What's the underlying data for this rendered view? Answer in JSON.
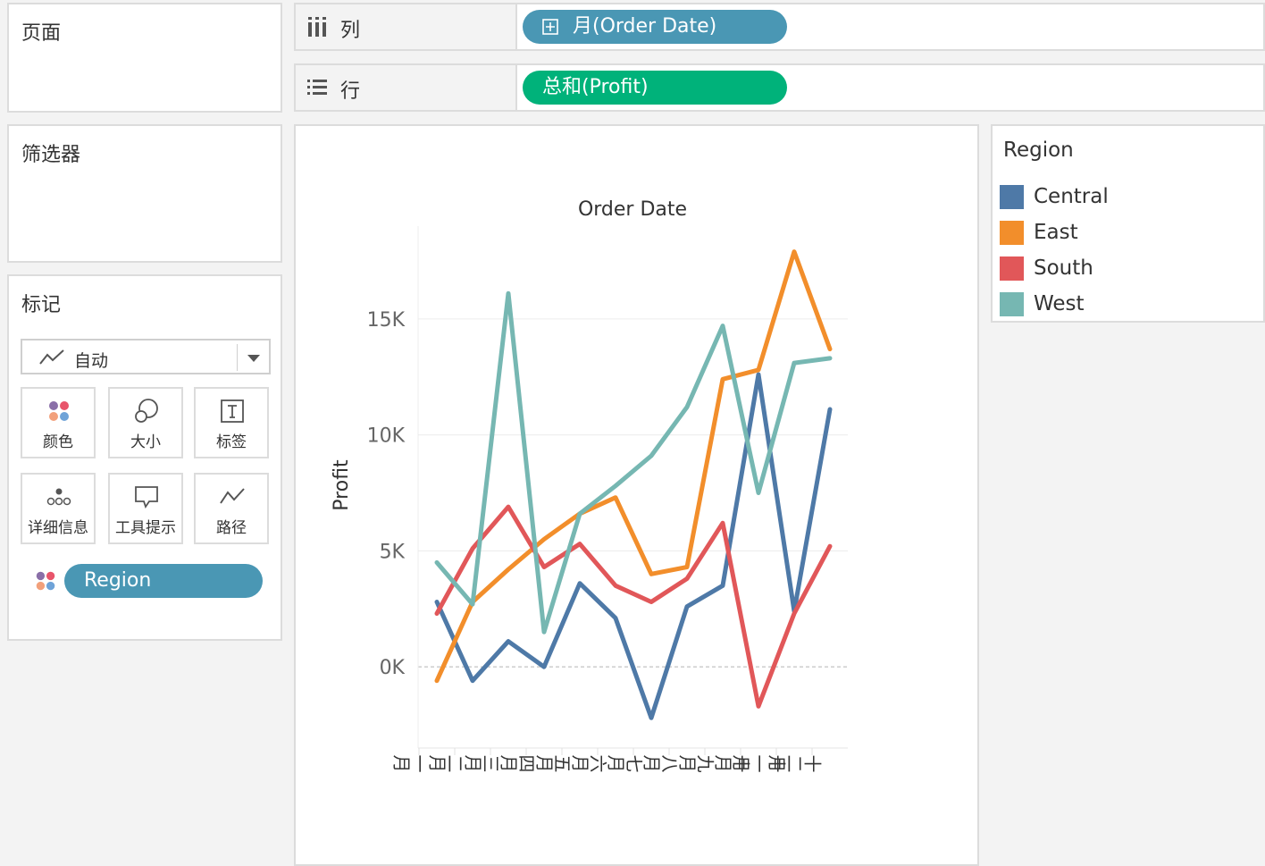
{
  "pages_panel": {
    "title": "页面"
  },
  "filters_panel": {
    "title": "筛选器"
  },
  "marks_panel": {
    "title": "标记",
    "mark_type": "自动",
    "buttons": [
      "颜色",
      "大小",
      "标签",
      "详细信息",
      "工具提示",
      "路径"
    ],
    "color_pill": "Region"
  },
  "columns_shelf": {
    "label": "列",
    "pill": "月(Order Date)"
  },
  "rows_shelf": {
    "label": "行",
    "pill": "总和(Profit)"
  },
  "legend": {
    "title": "Region",
    "items": [
      {
        "name": "Central",
        "color": "#4e79a7"
      },
      {
        "name": "East",
        "color": "#f28e2b"
      },
      {
        "name": "South",
        "color": "#e15759"
      },
      {
        "name": "West",
        "color": "#76b7b2"
      }
    ]
  },
  "chart_data": {
    "type": "line",
    "title": "Order Date",
    "xlabel": "",
    "ylabel": "Profit",
    "categories": [
      "一月",
      "二月",
      "三月",
      "四月",
      "五月",
      "六月",
      "七月",
      "八月",
      "九月",
      "十月",
      "十一月",
      "十二月"
    ],
    "yticks": [
      0,
      5000,
      10000,
      15000
    ],
    "ytick_labels": [
      "0K",
      "5K",
      "10K",
      "15K"
    ],
    "ylim": [
      -3500,
      19000
    ],
    "grid": true,
    "series": [
      {
        "name": "Central",
        "color": "#4e79a7",
        "values": [
          2800,
          -600,
          1100,
          0,
          3600,
          2100,
          -2200,
          2600,
          3500,
          12600,
          2400,
          11100
        ]
      },
      {
        "name": "East",
        "color": "#f28e2b",
        "values": [
          -600,
          2800,
          4200,
          5500,
          6600,
          7300,
          4000,
          4300,
          12400,
          12800,
          17900,
          13700
        ]
      },
      {
        "name": "South",
        "color": "#e15759",
        "values": [
          2300,
          5100,
          6900,
          4300,
          5300,
          3500,
          2800,
          3800,
          6200,
          -1700,
          2300,
          5200
        ]
      },
      {
        "name": "West",
        "color": "#76b7b2",
        "values": [
          4500,
          2700,
          16100,
          1500,
          6600,
          7800,
          9100,
          11200,
          14700,
          7500,
          13100,
          13300
        ]
      }
    ]
  }
}
